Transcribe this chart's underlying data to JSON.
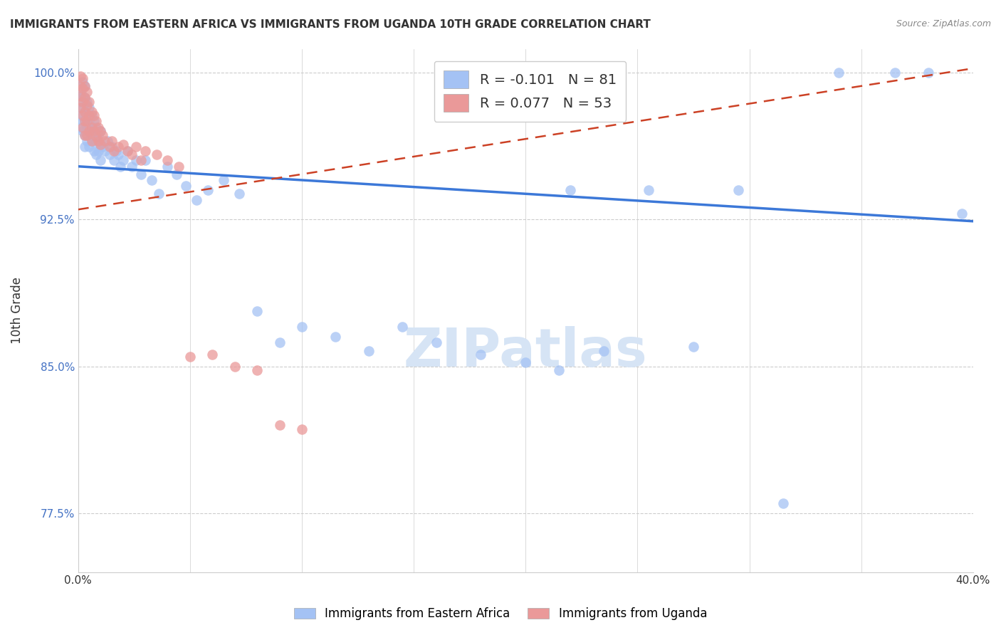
{
  "title": "IMMIGRANTS FROM EASTERN AFRICA VS IMMIGRANTS FROM UGANDA 10TH GRADE CORRELATION CHART",
  "source": "Source: ZipAtlas.com",
  "ylabel": "10th Grade",
  "xlim": [
    0.0,
    0.4
  ],
  "ylim": [
    0.745,
    1.012
  ],
  "yticks": [
    0.775,
    0.85,
    0.925,
    1.0
  ],
  "ytick_labels": [
    "77.5%",
    "85.0%",
    "92.5%",
    "100.0%"
  ],
  "xticks": [
    0.0,
    0.05,
    0.1,
    0.15,
    0.2,
    0.25,
    0.3,
    0.35,
    0.4
  ],
  "xtick_labels": [
    "0.0%",
    "",
    "",
    "",
    "",
    "",
    "",
    "",
    "40.0%"
  ],
  "R_eastern": -0.101,
  "N_eastern": 81,
  "R_uganda": 0.077,
  "N_uganda": 53,
  "color_eastern": "#a4c2f4",
  "color_uganda": "#ea9999",
  "color_line_eastern": "#3c78d8",
  "color_line_uganda": "#cc4125",
  "color_ytick_labels": "#4472c4",
  "watermark_text": "ZIPatlas",
  "watermark_color": "#d6e4f5",
  "eastern_line_x0": 0.0,
  "eastern_line_y0": 0.952,
  "eastern_line_x1": 0.4,
  "eastern_line_y1": 0.924,
  "uganda_line_x0": 0.0,
  "uganda_line_y0": 0.93,
  "uganda_line_x1": 0.4,
  "uganda_line_y1": 1.002,
  "eastern_x": [
    0.001,
    0.001,
    0.001,
    0.001,
    0.002,
    0.002,
    0.002,
    0.002,
    0.002,
    0.003,
    0.003,
    0.003,
    0.003,
    0.003,
    0.003,
    0.004,
    0.004,
    0.004,
    0.004,
    0.005,
    0.005,
    0.005,
    0.005,
    0.006,
    0.006,
    0.006,
    0.007,
    0.007,
    0.007,
    0.008,
    0.008,
    0.008,
    0.009,
    0.009,
    0.01,
    0.01,
    0.01,
    0.011,
    0.012,
    0.013,
    0.014,
    0.015,
    0.016,
    0.017,
    0.018,
    0.019,
    0.02,
    0.022,
    0.024,
    0.026,
    0.028,
    0.03,
    0.033,
    0.036,
    0.04,
    0.044,
    0.048,
    0.053,
    0.058,
    0.065,
    0.072,
    0.08,
    0.09,
    0.1,
    0.115,
    0.13,
    0.145,
    0.16,
    0.18,
    0.2,
    0.215,
    0.22,
    0.235,
    0.255,
    0.275,
    0.295,
    0.315,
    0.34,
    0.365,
    0.38,
    0.395
  ],
  "eastern_y": [
    0.99,
    0.985,
    0.978,
    0.972,
    0.995,
    0.988,
    0.982,
    0.975,
    0.97,
    0.993,
    0.987,
    0.98,
    0.975,
    0.968,
    0.962,
    0.985,
    0.978,
    0.972,
    0.965,
    0.982,
    0.975,
    0.97,
    0.962,
    0.978,
    0.972,
    0.965,
    0.975,
    0.968,
    0.96,
    0.972,
    0.965,
    0.958,
    0.968,
    0.96,
    0.97,
    0.963,
    0.955,
    0.962,
    0.96,
    0.965,
    0.958,
    0.962,
    0.955,
    0.96,
    0.958,
    0.952,
    0.955,
    0.96,
    0.952,
    0.955,
    0.948,
    0.955,
    0.945,
    0.938,
    0.952,
    0.948,
    0.942,
    0.935,
    0.94,
    0.945,
    0.938,
    0.878,
    0.862,
    0.87,
    0.865,
    0.858,
    0.87,
    0.862,
    0.856,
    0.852,
    0.848,
    0.94,
    0.858,
    0.94,
    0.86,
    0.94,
    0.78,
    1.0,
    1.0,
    1.0,
    0.928
  ],
  "uganda_x": [
    0.001,
    0.001,
    0.001,
    0.001,
    0.002,
    0.002,
    0.002,
    0.002,
    0.002,
    0.003,
    0.003,
    0.003,
    0.003,
    0.003,
    0.004,
    0.004,
    0.004,
    0.004,
    0.005,
    0.005,
    0.005,
    0.006,
    0.006,
    0.006,
    0.007,
    0.007,
    0.008,
    0.008,
    0.009,
    0.009,
    0.01,
    0.01,
    0.011,
    0.012,
    0.014,
    0.015,
    0.016,
    0.018,
    0.02,
    0.022,
    0.024,
    0.026,
    0.028,
    0.03,
    0.035,
    0.04,
    0.045,
    0.05,
    0.06,
    0.07,
    0.08,
    0.09,
    0.1
  ],
  "uganda_y": [
    0.998,
    0.993,
    0.988,
    0.982,
    0.997,
    0.992,
    0.985,
    0.978,
    0.972,
    0.993,
    0.987,
    0.98,
    0.975,
    0.968,
    0.99,
    0.983,
    0.975,
    0.968,
    0.985,
    0.978,
    0.97,
    0.98,
    0.972,
    0.965,
    0.978,
    0.97,
    0.975,
    0.967,
    0.972,
    0.965,
    0.97,
    0.963,
    0.968,
    0.965,
    0.962,
    0.965,
    0.96,
    0.962,
    0.963,
    0.96,
    0.958,
    0.962,
    0.955,
    0.96,
    0.958,
    0.955,
    0.952,
    0.855,
    0.856,
    0.85,
    0.848,
    0.82,
    0.818
  ]
}
